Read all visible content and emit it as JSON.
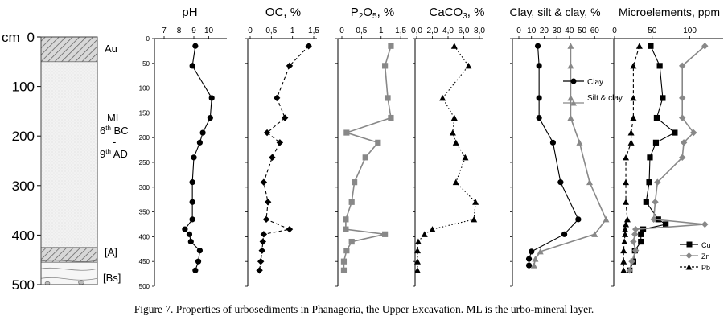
{
  "caption": "Figure 7. Properties of urbosediments in Phanagoria, the Upper Excavation. ML is the urbo-mineral layer.",
  "depth_axis": {
    "unit_label": "cm",
    "ticks": [
      0,
      100,
      200,
      300,
      400,
      500
    ],
    "range": [
      0,
      500
    ]
  },
  "profile": {
    "layers": [
      {
        "name": "Au",
        "top": 0,
        "bottom": 50,
        "pattern": "hatched"
      },
      {
        "name": "ML",
        "top": 50,
        "bottom": 425,
        "pattern": "dotted"
      },
      {
        "name": "[A]",
        "top": 425,
        "bottom": 455,
        "pattern": "hatched"
      },
      {
        "name": "[Bs]",
        "top": 455,
        "bottom": 500,
        "pattern": "stones"
      }
    ],
    "labels": {
      "au": "Au",
      "ml": "ML",
      "ml_line1_num": "6",
      "ml_line1_sup": "th",
      "ml_line1_rest": " BC",
      "ml_dash": "-",
      "ml_line3_num": "9",
      "ml_line3_sup": "th",
      "ml_line3_rest": " AD",
      "a": "[A]",
      "bs": "[Bs]"
    }
  },
  "chart_data": [
    {
      "type": "line",
      "title": "pH",
      "xlim": [
        7,
        11
      ],
      "x_ticks": [
        "7",
        "8",
        "9",
        "10"
      ],
      "x_tick_values": [
        7,
        8,
        9,
        10
      ],
      "y_ticks": [
        "0",
        "50",
        "100",
        "150",
        "200",
        "250",
        "300",
        "350",
        "400",
        "450",
        "500"
      ],
      "series": [
        {
          "name": "pH",
          "marker": "circle",
          "line": "solid",
          "color": "#000000",
          "depth": [
            15,
            55,
            120,
            160,
            190,
            210,
            240,
            290,
            330,
            365,
            385,
            395,
            410,
            428,
            450,
            468
          ],
          "values": [
            9.1,
            8.9,
            10.2,
            10.1,
            9.6,
            9.4,
            9.0,
            8.9,
            8.9,
            8.9,
            8.4,
            8.7,
            8.8,
            9.4,
            9.3,
            9.1
          ]
        }
      ]
    },
    {
      "type": "line",
      "title": "OC, %",
      "xlim": [
        0,
        1.5
      ],
      "x_ticks": [
        "0",
        "0,5",
        "1",
        "1,5"
      ],
      "x_tick_values": [
        0,
        0.5,
        1,
        1.5
      ],
      "y_ticks": [],
      "series": [
        {
          "name": "OC",
          "marker": "diamond",
          "line": "dashed",
          "color": "#000000",
          "depth": [
            15,
            55,
            120,
            160,
            190,
            210,
            240,
            290,
            330,
            365,
            385,
            395,
            410,
            428,
            450,
            468
          ],
          "values": [
            1.38,
            0.93,
            0.63,
            0.82,
            0.4,
            0.7,
            0.52,
            0.32,
            0.42,
            0.38,
            0.93,
            0.32,
            0.3,
            0.28,
            0.25,
            0.22
          ]
        }
      ]
    },
    {
      "type": "line",
      "title_main": "P",
      "title_sub": "2",
      "title_main2": "O",
      "title_sub2": "5",
      "title_rest": ", %",
      "xlim": [
        0,
        1.6
      ],
      "x_ticks": [
        "0",
        "0,5",
        "1",
        "1,5"
      ],
      "x_tick_values": [
        0,
        0.5,
        1,
        1.5
      ],
      "y_ticks": [],
      "series": [
        {
          "name": "P2O5",
          "marker": "square",
          "line": "solid",
          "color": "#888888",
          "depth": [
            15,
            55,
            120,
            160,
            190,
            210,
            240,
            290,
            330,
            365,
            385,
            395,
            410,
            428,
            450,
            468
          ],
          "values": [
            1.25,
            1.1,
            1.17,
            1.25,
            0.12,
            0.92,
            0.6,
            0.32,
            0.25,
            0.1,
            0.1,
            1.1,
            0.25,
            0.12,
            0.05,
            0.05
          ]
        }
      ]
    },
    {
      "type": "line",
      "title_main": "CaCO",
      "title_sub": "3",
      "title_rest": ", %",
      "xlim": [
        0,
        8
      ],
      "x_ticks": [
        "0,0",
        "2,0",
        "4,0",
        "6,0",
        "8,0"
      ],
      "x_tick_values": [
        0,
        2,
        4,
        6,
        8
      ],
      "y_ticks": [],
      "series": [
        {
          "name": "CaCO3",
          "marker": "triangle",
          "line": "dotted",
          "color": "#000000",
          "depth": [
            15,
            55,
            120,
            160,
            190,
            210,
            240,
            290,
            330,
            365,
            385,
            395,
            410,
            428,
            450,
            468
          ],
          "values": [
            4.8,
            6.6,
            3.3,
            4.8,
            4.6,
            5.0,
            6.2,
            5.0,
            7.5,
            7.3,
            2.0,
            1.0,
            0.2,
            0.1,
            0.1,
            0.1
          ]
        }
      ]
    },
    {
      "type": "line",
      "title": "Clay, silt & clay, %",
      "xlim": [
        0,
        70
      ],
      "x_ticks": [
        "0",
        "10",
        "20",
        "30",
        "40",
        "50",
        "60"
      ],
      "x_tick_values": [
        0,
        10,
        20,
        30,
        40,
        50,
        60
      ],
      "y_ticks": [],
      "legend": [
        "Clay",
        "Silt & clay"
      ],
      "series": [
        {
          "name": "Clay",
          "marker": "circle",
          "line": "solid",
          "color": "#000000",
          "depth": [
            15,
            55,
            120,
            160,
            210,
            290,
            365,
            395,
            430,
            445,
            458
          ],
          "values": [
            15,
            16,
            16,
            16,
            27,
            33,
            47,
            36,
            10,
            8,
            8
          ]
        },
        {
          "name": "Silt & clay",
          "marker": "triangle",
          "line": "solid",
          "color": "#888888",
          "depth": [
            15,
            55,
            120,
            160,
            210,
            290,
            365,
            395,
            430,
            445,
            458
          ],
          "values": [
            41,
            41,
            41,
            41,
            48,
            56,
            69,
            60,
            17,
            13,
            12
          ]
        }
      ]
    },
    {
      "type": "line",
      "title": "Microelements, ppm",
      "xlim": [
        0,
        140
      ],
      "x_ticks": [
        "0",
        "50",
        "100"
      ],
      "x_tick_values": [
        0,
        50,
        100
      ],
      "y_ticks": [],
      "legend": [
        "Cu",
        "Zn",
        "Pb"
      ],
      "series": [
        {
          "name": "Cu",
          "marker": "square",
          "line": "solid",
          "color": "#000000",
          "depth": [
            15,
            55,
            120,
            160,
            190,
            210,
            240,
            290,
            330,
            365,
            375,
            385,
            395,
            410,
            428,
            450,
            468
          ],
          "values": [
            48,
            60,
            64,
            56,
            80,
            55,
            47,
            46,
            42,
            58,
            68,
            38,
            35,
            35,
            27,
            25,
            20
          ]
        },
        {
          "name": "Zn",
          "marker": "diamond",
          "line": "solid",
          "color": "#888888",
          "depth": [
            15,
            55,
            120,
            160,
            190,
            210,
            240,
            290,
            330,
            365,
            375,
            385,
            395,
            410,
            428,
            450,
            468
          ],
          "values": [
            120,
            90,
            90,
            90,
            105,
            92,
            90,
            57,
            54,
            52,
            120,
            28,
            27,
            25,
            28,
            23,
            20
          ]
        },
        {
          "name": "Pb",
          "marker": "triangle",
          "line": "dashed",
          "color": "#000000",
          "depth": [
            15,
            55,
            120,
            160,
            190,
            210,
            240,
            290,
            330,
            365,
            375,
            385,
            395,
            410,
            428,
            450,
            468
          ],
          "values": [
            33,
            25,
            25,
            25,
            22,
            22,
            15,
            15,
            15,
            17,
            15,
            14,
            14,
            13,
            12,
            12,
            12
          ]
        }
      ]
    }
  ]
}
